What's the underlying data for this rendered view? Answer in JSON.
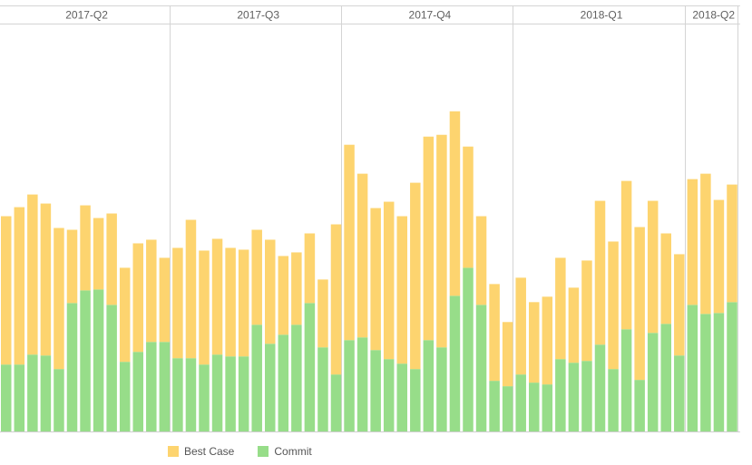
{
  "chart_data": {
    "type": "bar",
    "stacked": true,
    "quarters": [
      {
        "label": "2017-Q2",
        "weeks": 13
      },
      {
        "label": "2017-Q3",
        "weeks": 13
      },
      {
        "label": "2017-Q4",
        "weeks": 13
      },
      {
        "label": "2018-Q1",
        "weeks": 13
      },
      {
        "label": "2018-Q2",
        "weeks": 4
      }
    ],
    "series": [
      {
        "name": "Commit",
        "color": "#97dd89",
        "values": [
          74,
          74,
          85,
          84,
          69,
          142,
          156,
          157,
          140,
          77,
          88,
          99,
          99,
          81,
          81,
          74,
          85,
          83,
          83,
          118,
          97,
          107,
          118,
          142,
          93,
          63,
          101,
          104,
          90,
          80,
          75,
          69,
          101,
          93,
          150,
          181,
          140,
          56,
          50,
          63,
          54,
          52,
          80,
          76,
          78,
          96,
          69,
          113,
          57,
          109,
          119,
          84,
          140,
          130,
          131,
          143
        ]
      },
      {
        "name": "Best Case",
        "color": "#fdd46f",
        "values": [
          164,
          174,
          177,
          168,
          156,
          81,
          94,
          79,
          101,
          104,
          120,
          113,
          93,
          122,
          153,
          126,
          128,
          120,
          118,
          105,
          115,
          87,
          80,
          77,
          75,
          166,
          216,
          181,
          157,
          174,
          163,
          206,
          225,
          235,
          204,
          134,
          98,
          107,
          71,
          107,
          89,
          97,
          112,
          83,
          111,
          159,
          141,
          164,
          169,
          146,
          100,
          112,
          139,
          155,
          125,
          130
        ]
      }
    ],
    "legend": [
      "Best Case",
      "Commit"
    ],
    "legend_position": "bottom",
    "ylim": [
      0,
      450
    ]
  }
}
